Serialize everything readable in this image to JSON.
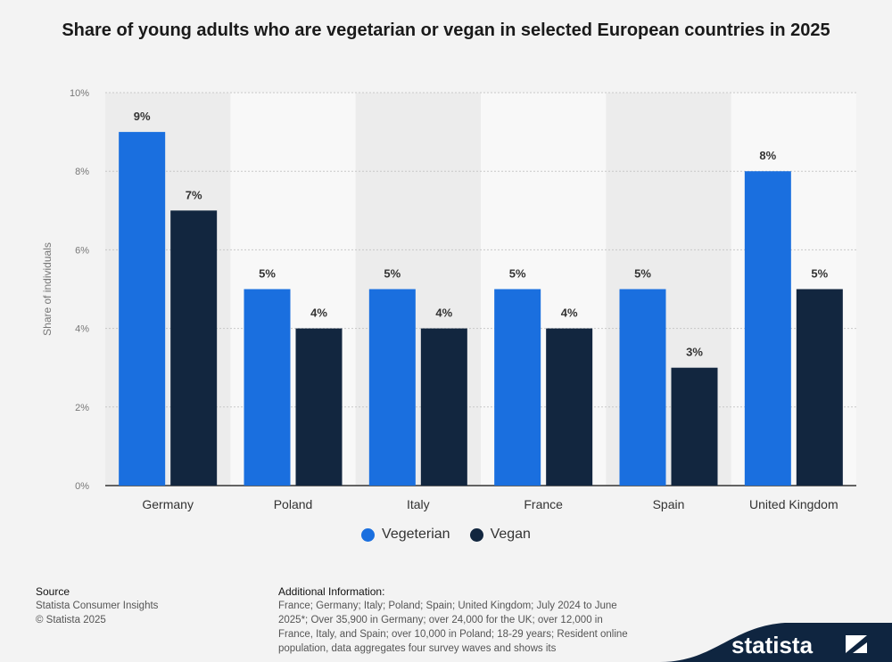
{
  "title": "Share of young adults who are vegetarian or vegan in selected European countries in 2025",
  "chart_data": {
    "type": "bar",
    "categories": [
      "Germany",
      "Poland",
      "Italy",
      "France",
      "Spain",
      "United Kingdom"
    ],
    "series": [
      {
        "name": "Vegeterian",
        "values": [
          9,
          5,
          5,
          5,
          5,
          8
        ],
        "color": "#1a6fdf"
      },
      {
        "name": "Vegan",
        "values": [
          7,
          4,
          4,
          4,
          3,
          5
        ],
        "color": "#12263f"
      }
    ],
    "ylabel": "Share of individuals",
    "ylim": [
      0,
      10
    ],
    "yticks": [
      0,
      2,
      4,
      6,
      8,
      10
    ],
    "ytick_labels": [
      "0%",
      "2%",
      "4%",
      "6%",
      "8%",
      "10%"
    ],
    "value_suffix": "%",
    "grid": true
  },
  "footer": {
    "source_label": "Source",
    "source_lines": [
      "Statista Consumer Insights",
      "© Statista 2025"
    ],
    "info_label": "Additional Information:",
    "info_text": "France; Germany; Italy; Poland; Spain; United Kingdom; July 2024 to June 2025*; Over 35,900 in Germany; over 24,000 for the UK; over 12,000 in France, Italy, and Spain; over 10,000 in Poland; 18-29 years; Resident online population, data aggregates four survey waves and shows its",
    "brand": "statista"
  }
}
